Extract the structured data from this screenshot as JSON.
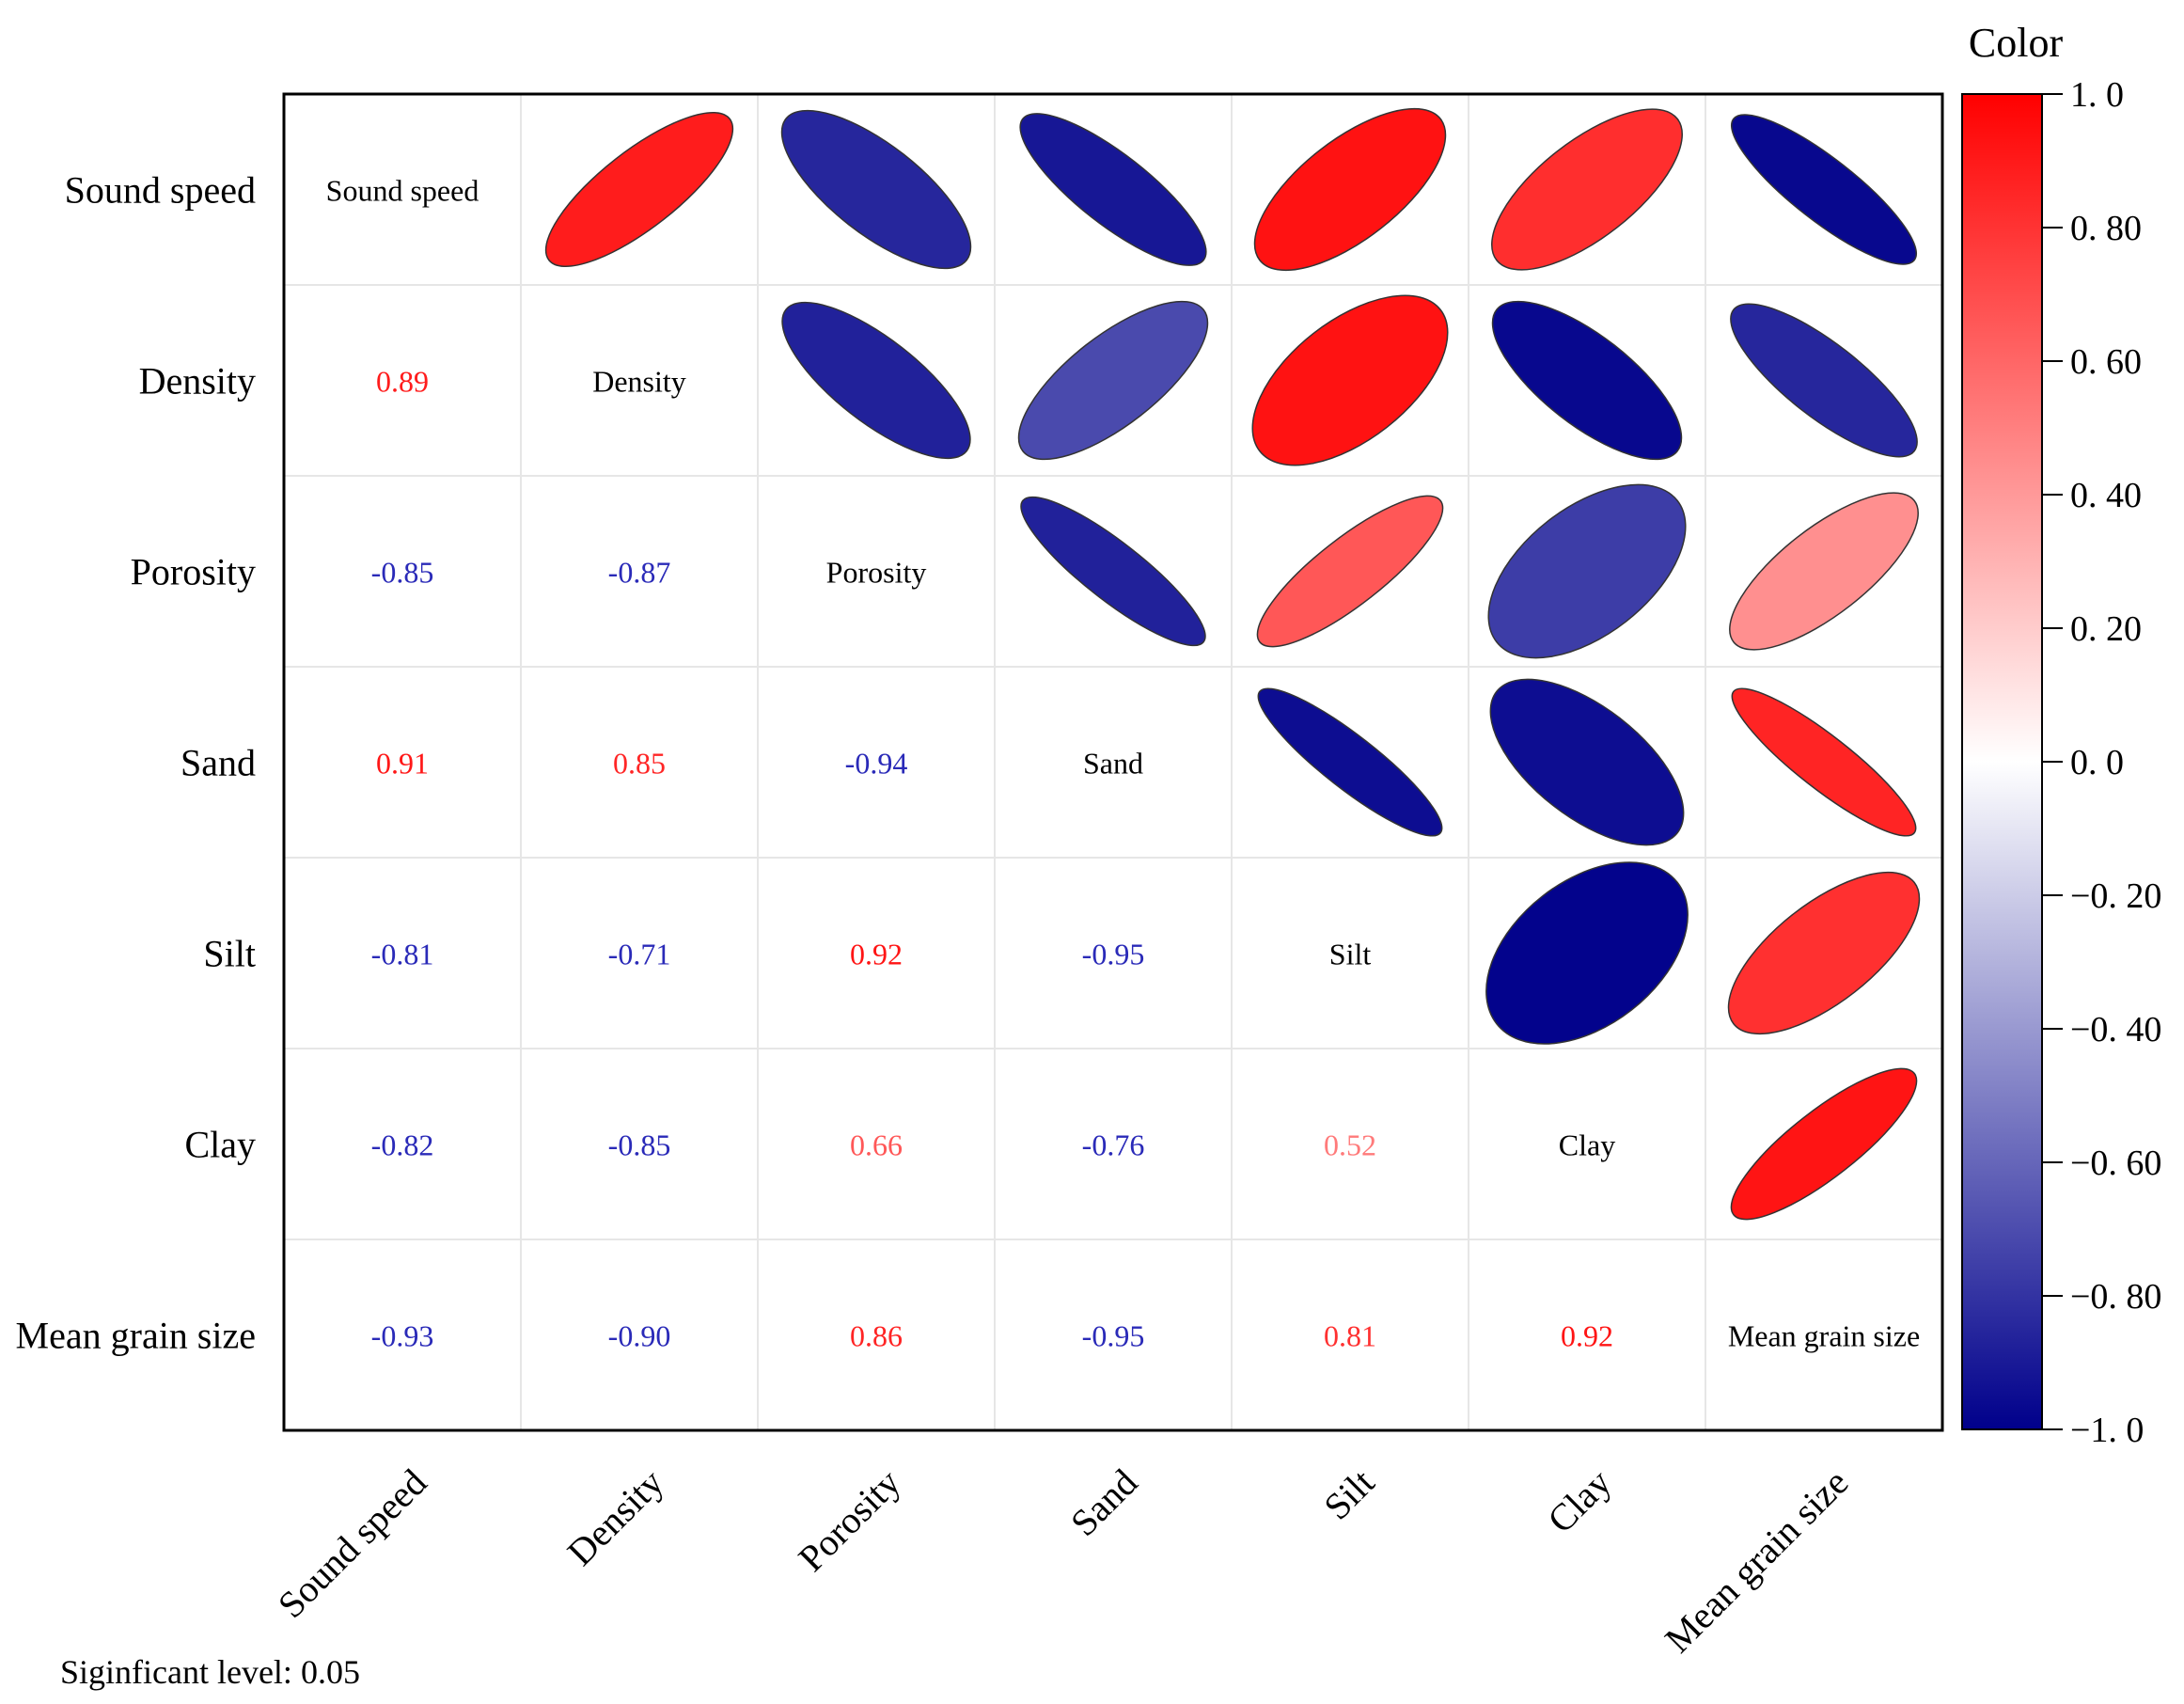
{
  "chart_data": {
    "type": "heatmap",
    "variables": [
      "Sound speed",
      "Density",
      "Porosity",
      "Sand",
      "Silt",
      "Clay",
      "Mean grain size"
    ],
    "matrix": [
      [
        1,
        0.89,
        -0.85,
        0.91,
        -0.81,
        -0.82,
        -0.93
      ],
      [
        0.89,
        1,
        -0.87,
        0.85,
        -0.71,
        -0.85,
        -0.9
      ],
      [
        -0.85,
        -0.87,
        1,
        -0.94,
        0.92,
        0.66,
        0.86
      ],
      [
        0.91,
        0.85,
        -0.94,
        1,
        -0.95,
        -0.76,
        -0.95
      ],
      [
        -0.81,
        -0.71,
        0.92,
        -0.95,
        1,
        0.52,
        0.81
      ],
      [
        -0.82,
        -0.85,
        0.66,
        -0.76,
        0.52,
        1,
        0.92
      ],
      [
        -0.93,
        -0.9,
        0.86,
        -0.95,
        0.81,
        0.92,
        1
      ]
    ],
    "lower_triangle_labels": [
      [
        "0.89"
      ],
      [
        "-0.85",
        "-0.87"
      ],
      [
        "0.91",
        "0.85",
        "-0.94"
      ],
      [
        "-0.81",
        "-0.71",
        "0.92",
        "-0.95"
      ],
      [
        "-0.82",
        "-0.85",
        "0.66",
        "-0.76",
        "0.52"
      ],
      [
        "-0.93",
        "-0.90",
        "0.86",
        "-0.95",
        "0.81",
        "0.92"
      ]
    ],
    "upper_triangle_glyphs": "ellipse",
    "upper_triangle_signs": [
      [
        1,
        -1,
        -1,
        1,
        1,
        -1
      ],
      [
        -1,
        1,
        1,
        -1,
        -1
      ],
      [
        -1,
        1,
        1,
        1
      ],
      [
        -1,
        -1,
        -1
      ],
      [
        1,
        1
      ],
      [
        1
      ]
    ],
    "upper_triangle_colors": [
      [
        0.89,
        -0.85,
        -0.91,
        0.93,
        0.82,
        -0.97
      ],
      [
        -0.87,
        -0.71,
        0.93,
        -0.97,
        -0.85
      ],
      [
        -0.87,
        0.66,
        -0.76,
        0.44
      ],
      [
        -0.95,
        -0.95,
        0.86
      ],
      [
        -0.99,
        0.81
      ],
      [
        0.92
      ]
    ],
    "upper_triangle_magnitudes": [
      [
        0.89,
        0.85,
        0.91,
        0.81,
        0.82,
        0.93
      ],
      [
        0.87,
        0.85,
        0.71,
        0.85,
        0.9
      ],
      [
        0.94,
        0.92,
        0.66,
        0.86
      ],
      [
        0.95,
        0.76,
        0.95
      ],
      [
        0.52,
        0.81
      ],
      [
        0.92
      ]
    ],
    "colorbar": {
      "title": "Color",
      "range": [
        -1,
        1
      ],
      "ticks": [
        1,
        0.8,
        0.6,
        0.4,
        0.2,
        0,
        -0.2,
        -0.4,
        -0.6,
        -0.8,
        -1
      ],
      "tick_labels": [
        "1. 0",
        "0. 80",
        "0. 60",
        "0. 40",
        "0. 20",
        "0. 0",
        "−0. 20",
        "−0. 40",
        "−0. 60",
        "−0. 80",
        "−1. 0"
      ],
      "colors": {
        "negative": "#00008B",
        "zero": "#FFFFFF",
        "positive": "#FF0000"
      }
    },
    "footnote": "Siginficant level: 0.05",
    "colors": {
      "negative_text": "#2a2ab8",
      "positive_text": "#ee2020",
      "grid": "#e6e6e6",
      "border": "#000000"
    }
  }
}
